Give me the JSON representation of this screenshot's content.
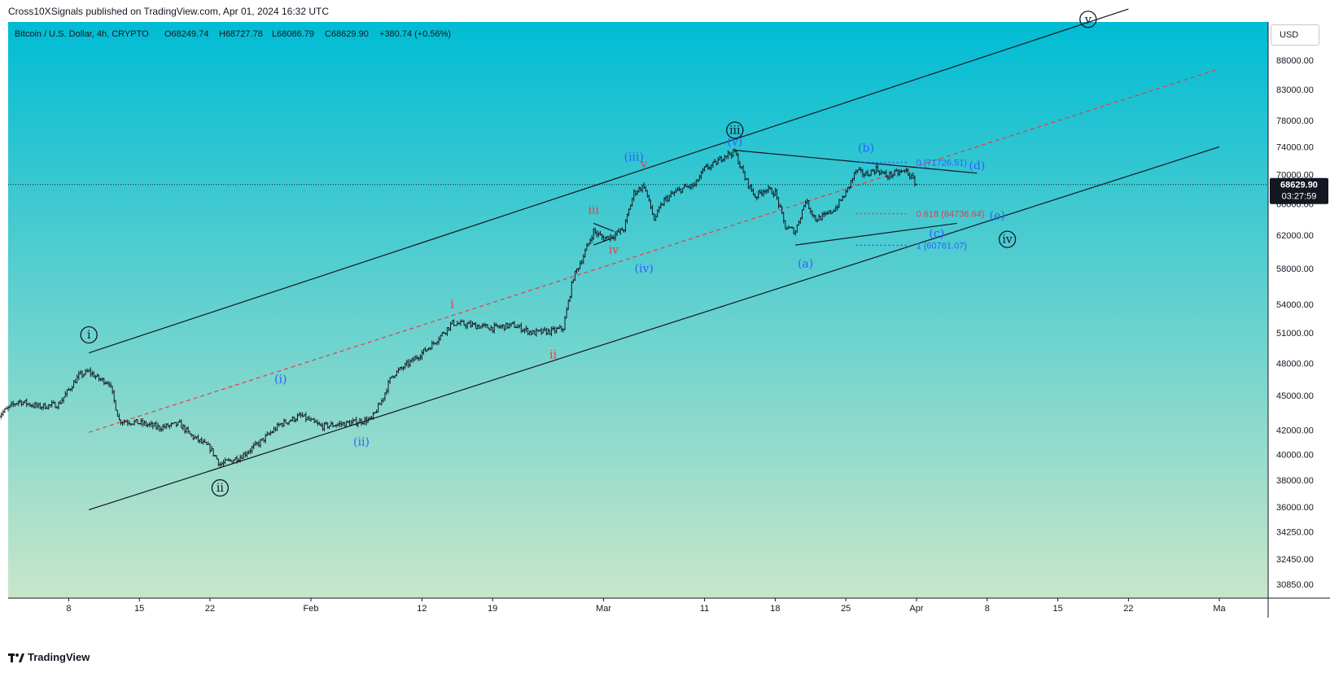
{
  "header": {
    "published_by": "Cross10XSignals published on TradingView.com, Apr 01, 2024 16:32 UTC"
  },
  "symbol_info": {
    "name": "Bitcoin / U.S. Dollar, 4h, CRYPTO",
    "open": "O68249.74",
    "high": "H68727.78",
    "low": "L68086.79",
    "close": "C68629.90",
    "change": "+380.74 (+0.56%)"
  },
  "currency_button": "USD",
  "current_price": {
    "value": 68629.9,
    "label": "68629.90",
    "countdown": "03:27:59"
  },
  "footer": {
    "brand": "TradingView"
  },
  "colors": {
    "bg_top": "#00bcd4",
    "bg_bottom": "#c8e6c9",
    "candle": "#131722",
    "wave_black": "#131722",
    "wave_blue": "#2962ff",
    "wave_red": "#f23645",
    "fib_blue": "#2962ff",
    "fib_red": "#f23645",
    "midline_red": "#f23645",
    "price_tag_bg": "#131722"
  },
  "chart_data": {
    "type": "candlestick",
    "title": "",
    "ylabel": "",
    "xlabel": "",
    "y_scale": "log",
    "ylim": [
      30000,
      95000
    ],
    "y_ticks": [
      88000,
      83000,
      78000,
      74000,
      70000,
      66000,
      62000,
      58000,
      54000,
      51000,
      48000,
      45000,
      42000,
      40000,
      38000,
      36000,
      34250,
      32450,
      30850
    ],
    "y_tick_labels": [
      "88000.00",
      "83000.00",
      "78000.00",
      "74000.00",
      "70000.00",
      "66000.00",
      "62000.00",
      "58000.00",
      "54000.00",
      "51000.00",
      "48000.00",
      "45000.00",
      "42000.00",
      "40000.00",
      "38000.00",
      "36000.00",
      "34250.00",
      "32450.00",
      "30850.00"
    ],
    "xlim": [
      "2024-01-02",
      "2024-05-01"
    ],
    "x_ticks": [
      {
        "date": "2024-01-08",
        "label": "8"
      },
      {
        "date": "2024-01-15",
        "label": "15"
      },
      {
        "date": "2024-01-22",
        "label": "22"
      },
      {
        "date": "2024-02-01",
        "label": "Feb"
      },
      {
        "date": "2024-02-12",
        "label": "12"
      },
      {
        "date": "2024-02-19",
        "label": "19"
      },
      {
        "date": "2024-03-01",
        "label": "Mar"
      },
      {
        "date": "2024-03-11",
        "label": "11"
      },
      {
        "date": "2024-03-18",
        "label": "18"
      },
      {
        "date": "2024-03-25",
        "label": "25"
      },
      {
        "date": "2024-04-01",
        "label": "Apr"
      },
      {
        "date": "2024-04-08",
        "label": "8"
      },
      {
        "date": "2024-04-15",
        "label": "15"
      },
      {
        "date": "2024-04-22",
        "label": "22"
      },
      {
        "date": "2024-05-01",
        "label": "Ma"
      }
    ],
    "price_path": [
      [
        "2024-01-01",
        43200
      ],
      [
        "2024-01-03",
        44500
      ],
      [
        "2024-01-05",
        44000
      ],
      [
        "2024-01-07",
        44200
      ],
      [
        "2024-01-09",
        46800
      ],
      [
        "2024-01-10",
        47200
      ],
      [
        "2024-01-11",
        46500
      ],
      [
        "2024-01-12",
        46200
      ],
      [
        "2024-01-13",
        42800
      ],
      [
        "2024-01-15",
        42600
      ],
      [
        "2024-01-17",
        42200
      ],
      [
        "2024-01-19",
        42500
      ],
      [
        "2024-01-20",
        41600
      ],
      [
        "2024-01-22",
        40500
      ],
      [
        "2024-01-23",
        39200
      ],
      [
        "2024-01-24",
        39500
      ],
      [
        "2024-01-25",
        39800
      ],
      [
        "2024-01-27",
        41000
      ],
      [
        "2024-01-29",
        42500
      ],
      [
        "2024-01-31",
        43200
      ],
      [
        "2024-02-02",
        42300
      ],
      [
        "2024-02-05",
        42600
      ],
      [
        "2024-02-07",
        42900
      ],
      [
        "2024-02-08",
        44500
      ],
      [
        "2024-02-09",
        46800
      ],
      [
        "2024-02-11",
        48200
      ],
      [
        "2024-02-13",
        49800
      ],
      [
        "2024-02-15",
        52000
      ],
      [
        "2024-02-17",
        51800
      ],
      [
        "2024-02-19",
        51500
      ],
      [
        "2024-02-21",
        51800
      ],
      [
        "2024-02-23",
        51000
      ],
      [
        "2024-02-25",
        51200
      ],
      [
        "2024-02-26",
        51500
      ],
      [
        "2024-02-27",
        57000
      ],
      [
        "2024-02-28",
        59500
      ],
      [
        "2024-02-29",
        62500
      ],
      [
        "2024-03-01",
        61600
      ],
      [
        "2024-03-02",
        62000
      ],
      [
        "2024-03-03",
        62800
      ],
      [
        "2024-03-04",
        67500
      ],
      [
        "2024-03-05",
        68500
      ],
      [
        "2024-03-06",
        64000
      ],
      [
        "2024-03-07",
        66500
      ],
      [
        "2024-03-08",
        67500
      ],
      [
        "2024-03-09",
        68200
      ],
      [
        "2024-03-10",
        68500
      ],
      [
        "2024-03-11",
        70800
      ],
      [
        "2024-03-12",
        71500
      ],
      [
        "2024-03-13",
        72800
      ],
      [
        "2024-03-14",
        73200
      ],
      [
        "2024-03-15",
        69500
      ],
      [
        "2024-03-16",
        67000
      ],
      [
        "2024-03-17",
        68000
      ],
      [
        "2024-03-18",
        67500
      ],
      [
        "2024-03-19",
        63000
      ],
      [
        "2024-03-20",
        62500
      ],
      [
        "2024-03-21",
        66500
      ],
      [
        "2024-03-22",
        64000
      ],
      [
        "2024-03-23",
        64500
      ],
      [
        "2024-03-24",
        65500
      ],
      [
        "2024-03-25",
        67500
      ],
      [
        "2024-03-26",
        70500
      ],
      [
        "2024-03-27",
        70000
      ],
      [
        "2024-03-28",
        70800
      ],
      [
        "2024-03-29",
        69800
      ],
      [
        "2024-03-30",
        70200
      ],
      [
        "2024-03-31",
        70500
      ],
      [
        "2024-04-01",
        68630
      ]
    ],
    "trendlines": [
      {
        "name": "channel-upper",
        "from": [
          "2024-01-10",
          49000
        ],
        "to": [
          "2024-04-22",
          97500
        ],
        "style": "solid",
        "color": "#131722"
      },
      {
        "name": "channel-lower",
        "from": [
          "2024-01-10",
          35800
        ],
        "to": [
          "2024-05-01",
          74000
        ],
        "style": "solid",
        "color": "#131722"
      },
      {
        "name": "channel-mid",
        "from": [
          "2024-01-10",
          41800
        ],
        "to": [
          "2024-05-01",
          86500
        ],
        "style": "dashed",
        "color": "#f23645"
      },
      {
        "name": "triangle-upper",
        "from": [
          "2024-03-14",
          73500
        ],
        "to": [
          "2024-04-07",
          70200
        ],
        "style": "solid",
        "color": "#131722"
      },
      {
        "name": "triangle-lower",
        "from": [
          "2024-03-20",
          60800
        ],
        "to": [
          "2024-04-05",
          63500
        ],
        "style": "solid",
        "color": "#131722"
      },
      {
        "name": "small-pennant-top",
        "from": [
          "2024-02-29",
          63500
        ],
        "to": [
          "2024-03-02",
          62500
        ],
        "style": "solid",
        "color": "#131722"
      },
      {
        "name": "small-pennant-bottom",
        "from": [
          "2024-02-29",
          60800
        ],
        "to": [
          "2024-03-02",
          61700
        ],
        "style": "solid",
        "color": "#131722"
      }
    ],
    "fib_levels": [
      {
        "label": "0 (71726.51)",
        "price": 71726.51,
        "from": "2024-03-26",
        "to": "2024-03-31",
        "color": "#2962ff"
      },
      {
        "label": "0.618 (64736.64)",
        "price": 64736.64,
        "from": "2024-03-26",
        "to": "2024-03-31",
        "color": "#f23645"
      },
      {
        "label": "1 (60761.07)",
        "price": 60761.07,
        "from": "2024-03-26",
        "to": "2024-03-31",
        "color": "#2962ff"
      }
    ],
    "wave_labels": [
      {
        "text": "i",
        "date": "2024-01-10",
        "price": 50800,
        "color": "#131722",
        "circled": true
      },
      {
        "text": "ii",
        "date": "2024-01-23",
        "price": 37400,
        "color": "#131722",
        "circled": true
      },
      {
        "text": "iii",
        "date": "2024-03-14",
        "price": 76500,
        "color": "#131722",
        "circled": true
      },
      {
        "text": "iv",
        "date": "2024-04-10",
        "price": 61500,
        "color": "#131722",
        "circled": true
      },
      {
        "text": "v",
        "date": "2024-04-18",
        "price": 95500,
        "color": "#131722",
        "circled": true
      },
      {
        "text": "(i)",
        "date": "2024-01-29",
        "price": 46500,
        "color": "#2962ff",
        "circled": false
      },
      {
        "text": "(ii)",
        "date": "2024-02-06",
        "price": 41000,
        "color": "#2962ff",
        "circled": false
      },
      {
        "text": "(iii)",
        "date": "2024-03-04",
        "price": 72500,
        "color": "#2962ff",
        "circled": false
      },
      {
        "text": "(iv)",
        "date": "2024-03-05",
        "price": 58000,
        "color": "#2962ff",
        "circled": false
      },
      {
        "text": "(v)",
        "date": "2024-03-14",
        "price": 74800,
        "color": "#2962ff",
        "circled": false
      },
      {
        "text": "(a)",
        "date": "2024-03-21",
        "price": 58600,
        "color": "#2962ff",
        "circled": false
      },
      {
        "text": "(b)",
        "date": "2024-03-27",
        "price": 73800,
        "color": "#2962ff",
        "circled": false
      },
      {
        "text": "(c)",
        "date": "2024-04-03",
        "price": 62200,
        "color": "#2962ff",
        "circled": false
      },
      {
        "text": "(d)",
        "date": "2024-04-07",
        "price": 71300,
        "color": "#2962ff",
        "circled": false
      },
      {
        "text": "(e)",
        "date": "2024-04-09",
        "price": 64500,
        "color": "#2962ff",
        "circled": false
      },
      {
        "text": "i",
        "date": "2024-02-15",
        "price": 54000,
        "color": "#f23645",
        "circled": false
      },
      {
        "text": "ii",
        "date": "2024-02-25",
        "price": 48800,
        "color": "#f23645",
        "circled": false
      },
      {
        "text": "iii",
        "date": "2024-02-29",
        "price": 65200,
        "color": "#f23645",
        "circled": false
      },
      {
        "text": "iv",
        "date": "2024-03-02",
        "price": 60200,
        "color": "#f23645",
        "circled": false
      },
      {
        "text": "v",
        "date": "2024-03-05",
        "price": 71500,
        "color": "#f23645",
        "circled": false
      }
    ]
  }
}
